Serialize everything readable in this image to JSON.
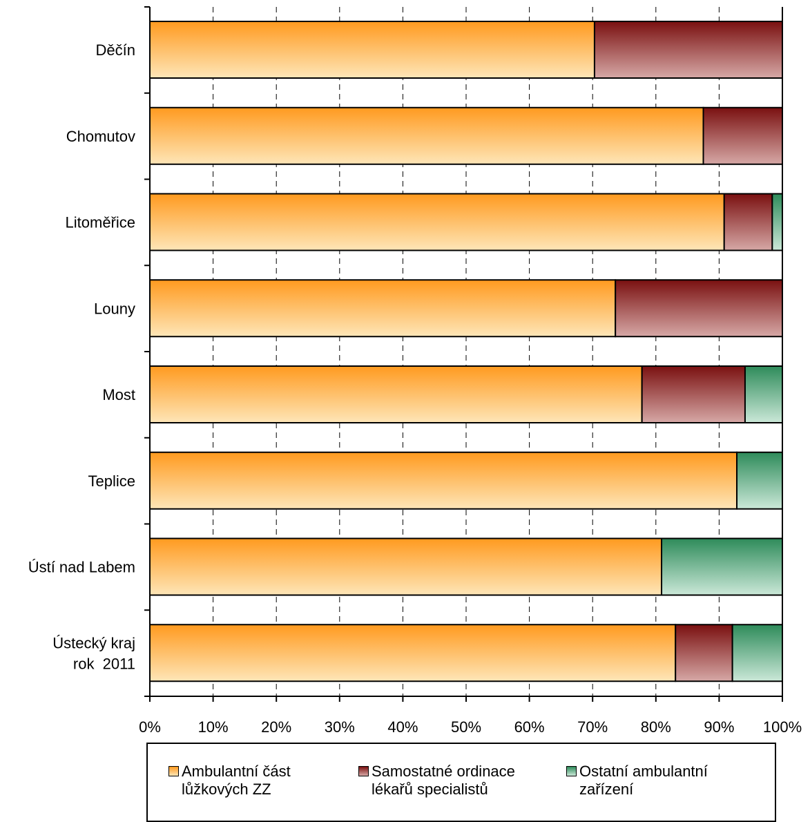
{
  "chart_data": {
    "type": "bar",
    "orientation": "horizontal",
    "stacked": "percent",
    "categories": [
      "Děčín",
      "Chomutov",
      "Litoměřice",
      "Louny",
      "Most",
      "Teplice",
      "Ústí nad Labem",
      "Ústecký kraj\nrok  2011"
    ],
    "series": [
      {
        "name": "Ambulantní část\nlůžkových ZZ",
        "values": [
          70.3,
          87.5,
          90.8,
          73.6,
          77.8,
          92.8,
          80.9,
          83.1
        ],
        "color_top": "#ff9a1f",
        "color_bottom": "#fee6b8"
      },
      {
        "name": "Samostatné ordinace\nlékařů specialistů",
        "values": [
          29.7,
          12.5,
          7.6,
          26.4,
          16.3,
          0,
          0,
          9.0
        ],
        "color_top": "#7a1010",
        "color_bottom": "#d6a8a6"
      },
      {
        "name": "Ostatní ambulantní\nzařízení",
        "values": [
          0,
          0,
          1.6,
          0,
          5.9,
          7.2,
          19.1,
          7.9
        ],
        "color_top": "#2e8b5a",
        "color_bottom": "#cbe8d8"
      }
    ],
    "xlim": [
      0,
      100
    ],
    "xticks": [
      "0%",
      "10%",
      "20%",
      "30%",
      "40%",
      "50%",
      "60%",
      "70%",
      "80%",
      "90%",
      "100%"
    ],
    "grid": "vertical dashed",
    "legend_position": "bottom"
  }
}
